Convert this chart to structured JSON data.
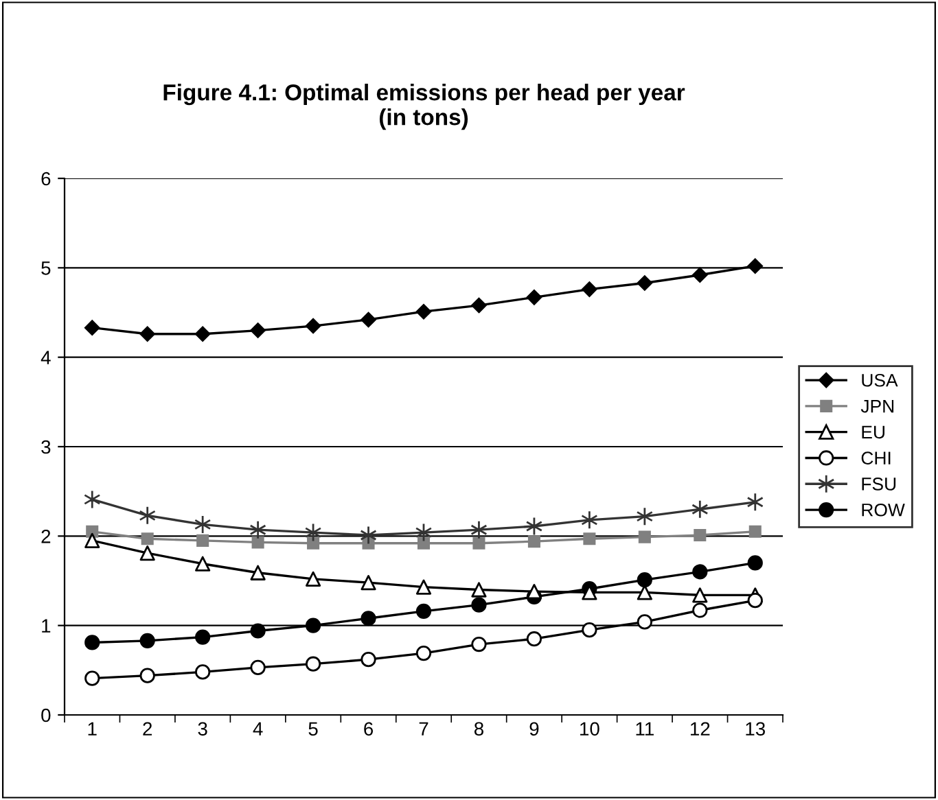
{
  "chart_data": {
    "type": "line",
    "title": "Figure 4.1: Optimal emissions per head per year\n(in tons)",
    "categories": [
      "1",
      "2",
      "3",
      "4",
      "5",
      "6",
      "7",
      "8",
      "9",
      "10",
      "11",
      "12",
      "13"
    ],
    "series": [
      {
        "name": "USA",
        "color": "#000000",
        "marker": "diamond",
        "values": [
          4.33,
          4.26,
          4.26,
          4.3,
          4.35,
          4.42,
          4.51,
          4.58,
          4.67,
          4.76,
          4.83,
          4.92,
          5.02
        ]
      },
      {
        "name": "JPN",
        "color": "#808080",
        "marker": "square",
        "values": [
          2.05,
          1.97,
          1.95,
          1.93,
          1.92,
          1.92,
          1.92,
          1.92,
          1.94,
          1.97,
          1.99,
          2.01,
          2.05
        ]
      },
      {
        "name": "EU",
        "color": "#000000",
        "marker": "triangle",
        "colors": [
          "#ffffff",
          "#ffffff",
          "#ffffff",
          "#ffffff",
          "#ffffff",
          "#ffffff",
          "#ffffff",
          "#ffffff",
          "#ffffff",
          "#ffffff",
          "#ffffff",
          "#ffffff",
          "#ffffff"
        ],
        "values": [
          1.95,
          1.81,
          1.69,
          1.59,
          1.52,
          1.48,
          1.43,
          1.4,
          1.38,
          1.37,
          1.37,
          1.34,
          1.34
        ]
      },
      {
        "name": "CHI",
        "color": "#000000",
        "marker": "circle",
        "colors": [
          "#ffffff",
          "#ffffff",
          "#ffffff",
          "#ffffff",
          "#ffffff",
          "#ffffff",
          "#ffffff",
          "#ffffff",
          "#ffffff",
          "#ffffff",
          "#ffffff",
          "#ffffff",
          "#ffffff"
        ],
        "values": [
          0.41,
          0.44,
          0.48,
          0.53,
          0.57,
          0.62,
          0.69,
          0.79,
          0.85,
          0.95,
          1.04,
          1.17,
          1.28
        ]
      },
      {
        "name": "FSU",
        "color": "#333333",
        "marker": "cross",
        "values": [
          2.41,
          2.23,
          2.13,
          2.07,
          2.04,
          2.01,
          2.04,
          2.07,
          2.11,
          2.18,
          2.22,
          2.3,
          2.38
        ]
      },
      {
        "name": "ROW",
        "color": "#000000",
        "marker": "circle",
        "values": [
          0.81,
          0.83,
          0.87,
          0.94,
          1.0,
          1.08,
          1.16,
          1.23,
          1.32,
          1.41,
          1.51,
          1.6,
          1.7
        ]
      }
    ],
    "ylim": [
      0,
      6
    ],
    "yticks": [
      0,
      1,
      2,
      3,
      4,
      5,
      6
    ],
    "grid": "y",
    "legend": "right"
  }
}
